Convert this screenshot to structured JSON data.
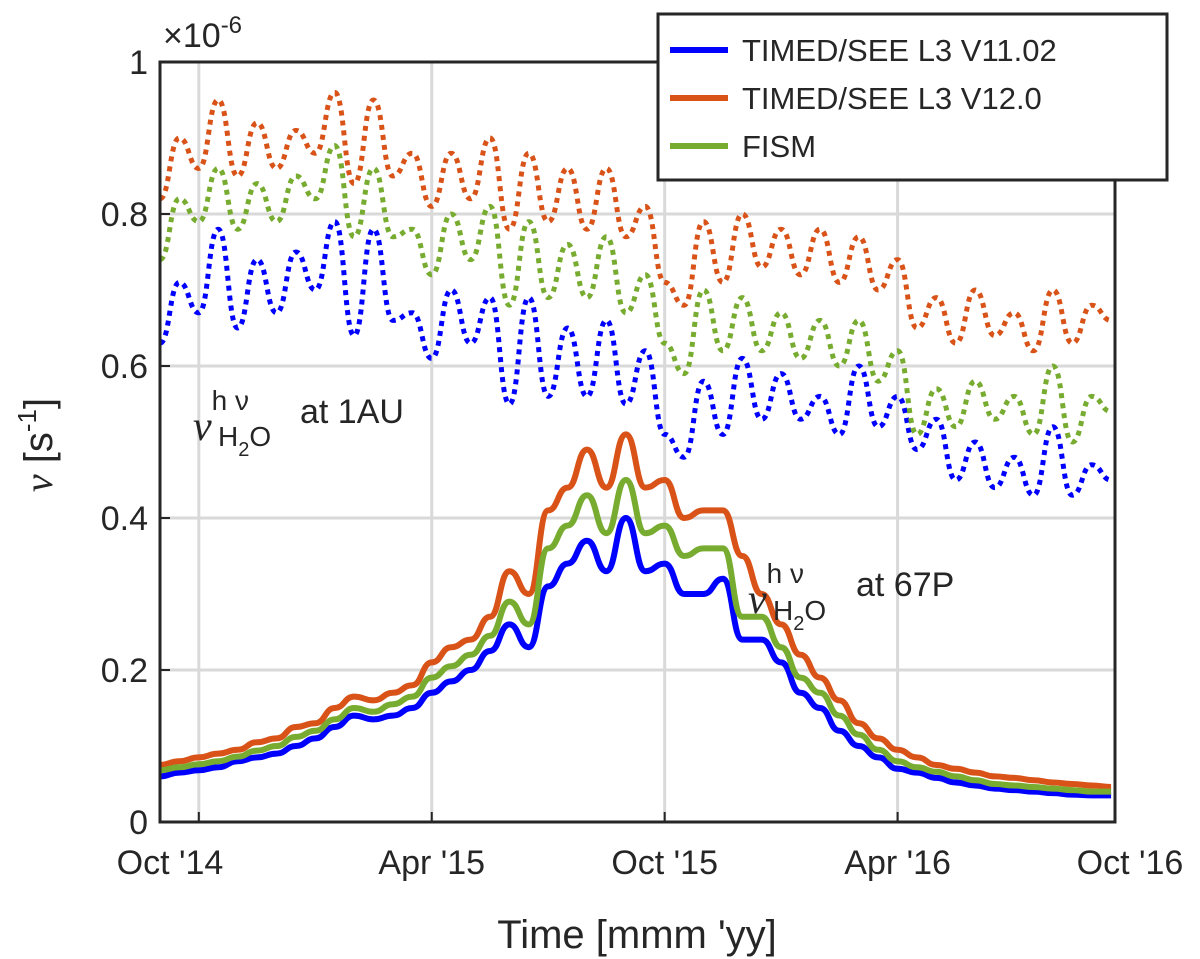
{
  "chart_data": {
    "type": "line",
    "xlabel": "Time [mmm 'yy]",
    "ylabel": "ν [s⁻¹]",
    "ylabel_symbol": "ν",
    "ylabel_unit": "[s",
    "ylabel_exp": "-1",
    "ylabel_close": "]",
    "yscale_prefix": "×10",
    "yscale_exp": "-6",
    "xlim": [
      0,
      24.6
    ],
    "ylim": [
      0,
      1
    ],
    "x_unit": "months since Oct '14",
    "xticks": [
      {
        "x": 1,
        "label": "Oct '14"
      },
      {
        "x": 7,
        "label": "Apr '15"
      },
      {
        "x": 13,
        "label": "Oct '15"
      },
      {
        "x": 19,
        "label": "Apr '16"
      },
      {
        "x": 25,
        "label": "Oct '16"
      }
    ],
    "yticks": [
      {
        "y": 0,
        "label": "0"
      },
      {
        "y": 0.2,
        "label": "0.2"
      },
      {
        "y": 0.4,
        "label": "0.4"
      },
      {
        "y": 0.6,
        "label": "0.6"
      },
      {
        "y": 0.8,
        "label": "0.8"
      },
      {
        "y": 1,
        "label": "1"
      }
    ],
    "grid": true,
    "legend_position": "top-right",
    "annotations": [
      {
        "id": "1au",
        "sym": "ν",
        "sup": "h ν",
        "sub": "H",
        "sub2": "2",
        "sub3": "O",
        "text": "at 1AU"
      },
      {
        "id": "67p",
        "sym": "ν",
        "sup": "h ν",
        "sub": "H",
        "sub2": "2",
        "sub3": "O",
        "text": "at 67P"
      }
    ],
    "series": [
      {
        "name": "TIMED/SEE L3 V11.02",
        "color": "#0000ff",
        "at_1au_dotted": {
          "x": [
            0,
            0.5,
            1,
            1.5,
            2,
            2.5,
            3,
            3.5,
            4,
            4.5,
            5,
            5.5,
            6,
            6.5,
            7,
            7.5,
            8,
            8.5,
            9,
            9.5,
            10,
            10.5,
            11,
            11.5,
            12,
            12.5,
            13,
            13.5,
            14,
            14.5,
            15,
            15.5,
            16,
            16.5,
            17,
            17.5,
            18,
            18.5,
            19,
            19.5,
            20,
            20.5,
            21,
            21.5,
            22,
            22.5,
            23,
            23.5,
            24,
            24.5
          ],
          "y": [
            0.63,
            0.71,
            0.67,
            0.78,
            0.65,
            0.74,
            0.67,
            0.75,
            0.7,
            0.79,
            0.64,
            0.78,
            0.66,
            0.67,
            0.61,
            0.7,
            0.63,
            0.69,
            0.55,
            0.69,
            0.56,
            0.65,
            0.56,
            0.66,
            0.55,
            0.62,
            0.51,
            0.48,
            0.58,
            0.51,
            0.61,
            0.53,
            0.59,
            0.53,
            0.56,
            0.51,
            0.6,
            0.52,
            0.56,
            0.49,
            0.53,
            0.45,
            0.5,
            0.44,
            0.48,
            0.43,
            0.52,
            0.43,
            0.47,
            0.45
          ]
        },
        "at_67p": {
          "x": [
            0,
            0.5,
            1,
            1.5,
            2,
            2.5,
            3,
            3.5,
            4,
            4.5,
            5,
            5.5,
            6,
            6.5,
            7,
            7.5,
            8,
            8.5,
            9,
            9.5,
            10,
            10.5,
            11,
            11.5,
            12,
            12.5,
            13,
            13.5,
            14,
            14.5,
            15,
            15.5,
            16,
            16.5,
            17,
            17.5,
            18,
            18.5,
            19,
            19.5,
            20,
            20.5,
            21,
            21.5,
            22,
            22.5,
            23,
            23.5,
            24,
            24.5
          ],
          "y": [
            0.06,
            0.065,
            0.068,
            0.072,
            0.08,
            0.085,
            0.09,
            0.1,
            0.11,
            0.125,
            0.14,
            0.135,
            0.14,
            0.15,
            0.17,
            0.185,
            0.2,
            0.225,
            0.26,
            0.23,
            0.31,
            0.34,
            0.37,
            0.33,
            0.4,
            0.33,
            0.34,
            0.3,
            0.3,
            0.32,
            0.24,
            0.24,
            0.21,
            0.17,
            0.15,
            0.12,
            0.1,
            0.085,
            0.07,
            0.065,
            0.058,
            0.052,
            0.048,
            0.044,
            0.042,
            0.04,
            0.038,
            0.036,
            0.035,
            0.035
          ]
        }
      },
      {
        "name": "TIMED/SEE L3 V12.0",
        "color": "#d95319",
        "at_1au_dotted": {
          "x": [
            0,
            0.5,
            1,
            1.5,
            2,
            2.5,
            3,
            3.5,
            4,
            4.5,
            5,
            5.5,
            6,
            6.5,
            7,
            7.5,
            8,
            8.5,
            9,
            9.5,
            10,
            10.5,
            11,
            11.5,
            12,
            12.5,
            13,
            13.5,
            14,
            14.5,
            15,
            15.5,
            16,
            16.5,
            17,
            17.5,
            18,
            18.5,
            19,
            19.5,
            20,
            20.5,
            21,
            21.5,
            22,
            22.5,
            23,
            23.5,
            24,
            24.5
          ],
          "y": [
            0.82,
            0.9,
            0.86,
            0.95,
            0.85,
            0.92,
            0.86,
            0.91,
            0.88,
            0.96,
            0.84,
            0.95,
            0.85,
            0.88,
            0.81,
            0.88,
            0.82,
            0.9,
            0.78,
            0.88,
            0.79,
            0.86,
            0.78,
            0.86,
            0.77,
            0.81,
            0.71,
            0.68,
            0.79,
            0.71,
            0.8,
            0.73,
            0.78,
            0.72,
            0.78,
            0.71,
            0.77,
            0.7,
            0.74,
            0.65,
            0.69,
            0.63,
            0.7,
            0.64,
            0.67,
            0.62,
            0.7,
            0.63,
            0.68,
            0.66
          ]
        },
        "at_67p": {
          "x": [
            0,
            0.5,
            1,
            1.5,
            2,
            2.5,
            3,
            3.5,
            4,
            4.5,
            5,
            5.5,
            6,
            6.5,
            7,
            7.5,
            8,
            8.5,
            9,
            9.5,
            10,
            10.5,
            11,
            11.5,
            12,
            12.5,
            13,
            13.5,
            14,
            14.5,
            15,
            15.5,
            16,
            16.5,
            17,
            17.5,
            18,
            18.5,
            19,
            19.5,
            20,
            20.5,
            21,
            21.5,
            22,
            22.5,
            23,
            23.5,
            24,
            24.5
          ],
          "y": [
            0.075,
            0.08,
            0.085,
            0.09,
            0.095,
            0.105,
            0.11,
            0.125,
            0.13,
            0.15,
            0.165,
            0.16,
            0.17,
            0.18,
            0.21,
            0.23,
            0.24,
            0.27,
            0.33,
            0.3,
            0.41,
            0.44,
            0.49,
            0.44,
            0.51,
            0.44,
            0.45,
            0.4,
            0.41,
            0.41,
            0.35,
            0.3,
            0.26,
            0.22,
            0.19,
            0.16,
            0.13,
            0.11,
            0.095,
            0.085,
            0.075,
            0.07,
            0.065,
            0.06,
            0.058,
            0.055,
            0.052,
            0.05,
            0.048,
            0.046
          ]
        }
      },
      {
        "name": "FISM",
        "color": "#77ac30",
        "at_1au_dotted": {
          "x": [
            0,
            0.5,
            1,
            1.5,
            2,
            2.5,
            3,
            3.5,
            4,
            4.5,
            5,
            5.5,
            6,
            6.5,
            7,
            7.5,
            8,
            8.5,
            9,
            9.5,
            10,
            10.5,
            11,
            11.5,
            12,
            12.5,
            13,
            13.5,
            14,
            14.5,
            15,
            15.5,
            16,
            16.5,
            17,
            17.5,
            18,
            18.5,
            19,
            19.5,
            20,
            20.5,
            21,
            21.5,
            22,
            22.5,
            23,
            23.5,
            24,
            24.5
          ],
          "y": [
            0.74,
            0.82,
            0.79,
            0.86,
            0.78,
            0.84,
            0.79,
            0.85,
            0.82,
            0.89,
            0.77,
            0.86,
            0.77,
            0.78,
            0.72,
            0.8,
            0.74,
            0.81,
            0.68,
            0.79,
            0.69,
            0.76,
            0.69,
            0.77,
            0.67,
            0.72,
            0.63,
            0.59,
            0.7,
            0.62,
            0.69,
            0.62,
            0.67,
            0.61,
            0.66,
            0.6,
            0.66,
            0.58,
            0.62,
            0.51,
            0.57,
            0.52,
            0.58,
            0.53,
            0.56,
            0.51,
            0.6,
            0.5,
            0.56,
            0.54
          ]
        },
        "at_67p": {
          "x": [
            0,
            0.5,
            1,
            1.5,
            2,
            2.5,
            3,
            3.5,
            4,
            4.5,
            5,
            5.5,
            6,
            6.5,
            7,
            7.5,
            8,
            8.5,
            9,
            9.5,
            10,
            10.5,
            11,
            11.5,
            12,
            12.5,
            13,
            13.5,
            14,
            14.5,
            15,
            15.5,
            16,
            16.5,
            17,
            17.5,
            18,
            18.5,
            19,
            19.5,
            20,
            20.5,
            21,
            21.5,
            22,
            22.5,
            23,
            23.5,
            24,
            24.5
          ],
          "y": [
            0.068,
            0.072,
            0.076,
            0.08,
            0.086,
            0.094,
            0.1,
            0.112,
            0.12,
            0.135,
            0.15,
            0.145,
            0.155,
            0.165,
            0.19,
            0.205,
            0.22,
            0.245,
            0.29,
            0.26,
            0.36,
            0.39,
            0.43,
            0.38,
            0.45,
            0.38,
            0.39,
            0.35,
            0.36,
            0.36,
            0.27,
            0.27,
            0.23,
            0.19,
            0.17,
            0.14,
            0.115,
            0.095,
            0.08,
            0.072,
            0.066,
            0.06,
            0.055,
            0.05,
            0.048,
            0.046,
            0.044,
            0.042,
            0.04,
            0.04
          ]
        }
      }
    ]
  }
}
